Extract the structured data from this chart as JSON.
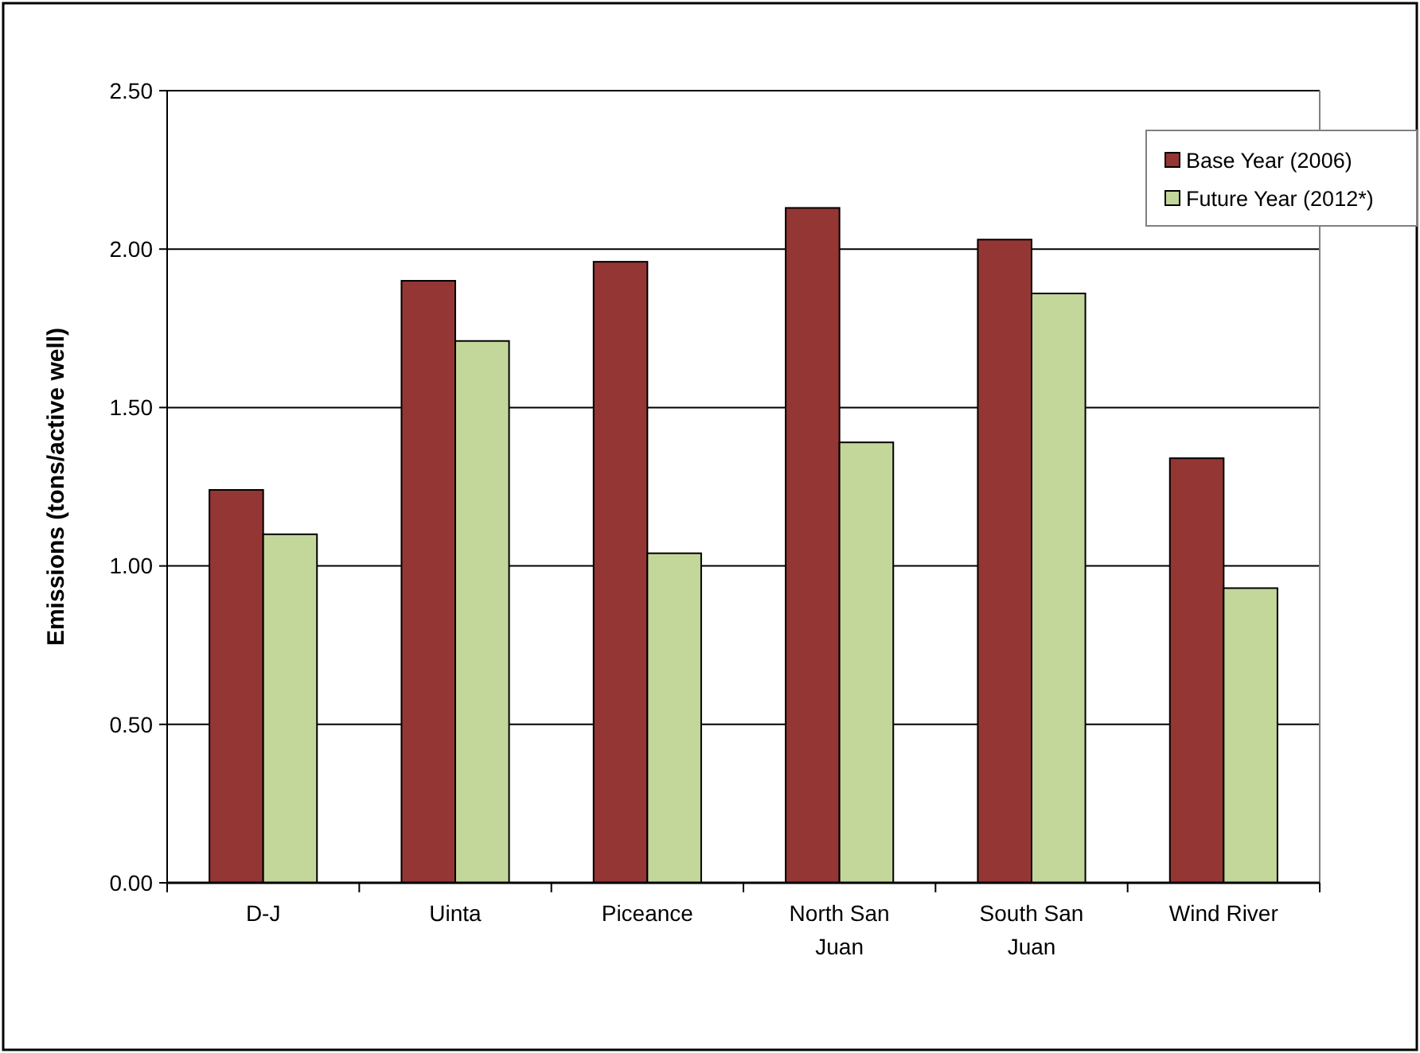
{
  "chart_data": {
    "type": "bar",
    "ylabel": "Emissions (tons/active well)",
    "categories": [
      "D-J",
      "Uinta",
      "Piceance",
      "North San Juan",
      "South San Juan",
      "Wind River"
    ],
    "series": [
      {
        "name": "Base Year (2006)",
        "color": "#943634",
        "values": [
          1.24,
          1.9,
          1.96,
          2.13,
          2.03,
          1.34
        ]
      },
      {
        "name": "Future Year (2012*)",
        "color": "#c4d79b",
        "values": [
          1.1,
          1.71,
          1.04,
          1.39,
          1.86,
          0.93
        ]
      }
    ],
    "ylim": [
      0,
      2.5
    ],
    "yticks": [
      {
        "value": 0,
        "label": "0.00"
      },
      {
        "value": 0.5,
        "label": "0.50"
      },
      {
        "value": 1,
        "label": "1.00"
      },
      {
        "value": 1.5,
        "label": "1.50"
      },
      {
        "value": 2,
        "label": "2.00"
      },
      {
        "value": 2.5,
        "label": "2.50"
      }
    ],
    "grid": "y",
    "legend": "top right"
  }
}
